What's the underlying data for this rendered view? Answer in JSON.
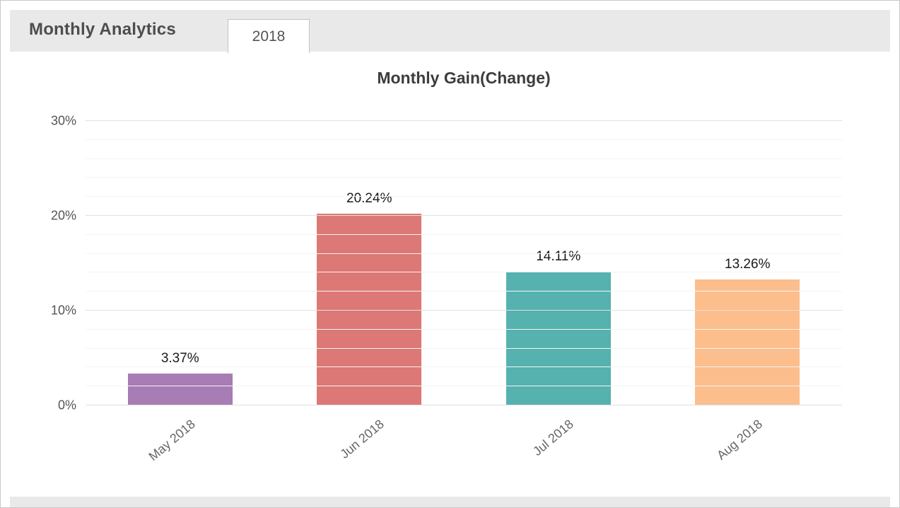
{
  "header": {
    "title": "Monthly Analytics",
    "tab_label": "2018"
  },
  "chart_data": {
    "type": "bar",
    "title": "Monthly Gain(Change)",
    "categories": [
      "May 2018",
      "Jun 2018",
      "Jul 2018",
      "Aug 2018"
    ],
    "values": [
      3.37,
      20.24,
      14.11,
      13.26
    ],
    "value_labels": [
      "3.37%",
      "20.24%",
      "14.11%",
      "13.26%"
    ],
    "bar_colors": [
      "#a87cb4",
      "#dc7876",
      "#55b2af",
      "#fcbe8c"
    ],
    "ylim": [
      0,
      30
    ],
    "y_tick_values": [
      0,
      10,
      20,
      30
    ],
    "y_tick_labels": [
      "0%",
      "10%",
      "20%",
      "30%"
    ],
    "minor_grid_step": 2,
    "grid": true,
    "legend": false,
    "xlabel": "",
    "ylabel": ""
  }
}
